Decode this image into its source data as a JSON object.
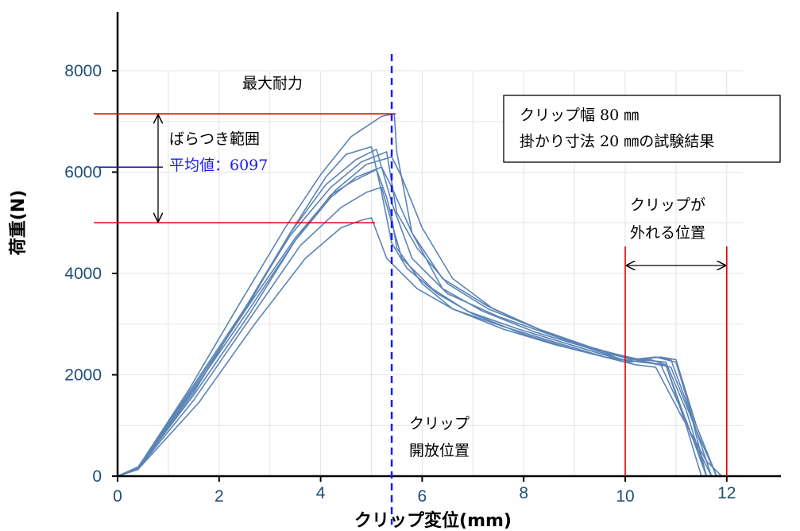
{
  "chart_data": {
    "type": "line",
    "xlabel": "クリップ変位(mm)",
    "ylabel": "荷重(N)",
    "xlim": [
      0,
      12.8
    ],
    "ylim": [
      0,
      8000
    ],
    "x_ticks": [
      0,
      2,
      4,
      6,
      8,
      10,
      12
    ],
    "y_ticks": [
      0,
      2000,
      4000,
      6000,
      8000
    ],
    "x_tick_labels": [
      "0",
      "2",
      "4",
      "6",
      "8",
      "10",
      "12"
    ],
    "y_tick_labels": [
      "0",
      "2000",
      "4000",
      "6000",
      "8000"
    ],
    "grid": true,
    "series_color": "#5b84b6",
    "series": [
      {
        "x": [
          0,
          0.4,
          1.5,
          2.6,
          3.5,
          4.2,
          4.6,
          5.1,
          5.3,
          5.4,
          5.5,
          6.0,
          6.6,
          7.6,
          8.6,
          9.6,
          10.2,
          10.6,
          11.1,
          11.6,
          11.9
        ],
        "y": [
          0,
          180,
          1700,
          3300,
          4650,
          5550,
          5800,
          6050,
          5500,
          5100,
          4500,
          3800,
          3300,
          2950,
          2650,
          2350,
          2200,
          2150,
          1200,
          300,
          0
        ]
      },
      {
        "x": [
          0,
          0.4,
          1.4,
          2.5,
          3.4,
          4.1,
          4.5,
          5.0,
          5.2,
          5.4,
          5.7,
          6.3,
          7.0,
          8.0,
          9.0,
          10.0,
          10.5,
          10.8,
          11.2,
          11.5
        ],
        "y": [
          0,
          150,
          1600,
          3250,
          4800,
          5900,
          6350,
          6500,
          5600,
          4600,
          4100,
          3600,
          3200,
          2800,
          2500,
          2250,
          2300,
          2200,
          1000,
          0
        ]
      },
      {
        "x": [
          0,
          0.4,
          1.4,
          2.4,
          3.3,
          4.0,
          4.6,
          5.2,
          5.45,
          5.5,
          5.8,
          6.4,
          7.2,
          8.2,
          9.2,
          10.1,
          10.6,
          10.9,
          11.3,
          11.6
        ],
        "y": [
          0,
          170,
          1700,
          3400,
          4900,
          5950,
          6700,
          7100,
          7150,
          6400,
          4800,
          3700,
          3250,
          2850,
          2550,
          2250,
          2350,
          2300,
          1200,
          0
        ]
      },
      {
        "x": [
          0,
          0.4,
          1.5,
          2.6,
          3.6,
          4.4,
          4.9,
          5.2,
          5.6,
          6.2,
          6.9,
          7.9,
          8.9,
          9.9,
          10.4,
          10.9,
          11.4,
          11.8
        ],
        "y": [
          0,
          140,
          1500,
          3100,
          4550,
          5300,
          5600,
          5700,
          4300,
          3700,
          3250,
          2900,
          2600,
          2300,
          2250,
          2150,
          900,
          0
        ]
      },
      {
        "x": [
          0,
          0.4,
          1.6,
          2.7,
          3.7,
          4.4,
          4.8,
          5.0,
          5.3,
          5.9,
          6.6,
          7.6,
          8.6,
          9.6,
          10.3,
          10.8,
          11.3,
          11.7
        ],
        "y": [
          0,
          130,
          1450,
          3000,
          4300,
          4900,
          5050,
          5100,
          4300,
          3700,
          3300,
          2900,
          2600,
          2350,
          2250,
          2200,
          800,
          0
        ]
      },
      {
        "x": [
          0,
          0.4,
          1.4,
          2.5,
          3.4,
          4.2,
          4.8,
          5.3,
          5.5,
          5.9,
          6.5,
          7.3,
          8.3,
          9.3,
          10.2,
          10.7,
          11.0,
          11.4,
          11.8
        ],
        "y": [
          0,
          160,
          1650,
          3300,
          4750,
          5700,
          6200,
          6400,
          5200,
          4500,
          3800,
          3300,
          2900,
          2550,
          2300,
          2350,
          2300,
          1000,
          0
        ]
      },
      {
        "x": [
          0,
          0.4,
          1.4,
          2.5,
          3.5,
          4.3,
          4.9,
          5.4,
          5.6,
          6.0,
          6.6,
          7.4,
          8.4,
          9.4,
          10.3,
          10.8,
          11.2,
          11.6
        ],
        "y": [
          0,
          150,
          1600,
          3250,
          4700,
          5650,
          6150,
          6300,
          5900,
          4900,
          3900,
          3300,
          2850,
          2500,
          2300,
          2250,
          1300,
          0
        ]
      },
      {
        "x": [
          0,
          0.4,
          1.5,
          2.5,
          3.4,
          4.1,
          4.7,
          5.1,
          5.4,
          5.8,
          6.5,
          7.5,
          8.5,
          9.5,
          10.2,
          10.7,
          11.2,
          11.6
        ],
        "y": [
          0,
          160,
          1650,
          3300,
          4800,
          5750,
          6250,
          6450,
          5400,
          4300,
          3600,
          3150,
          2800,
          2450,
          2300,
          2200,
          1100,
          0
        ]
      },
      {
        "x": [
          0,
          0.4,
          1.5,
          2.6,
          3.5,
          4.2,
          4.7,
          5.2,
          5.4,
          5.8,
          6.4,
          7.3,
          8.3,
          9.3,
          10.1,
          10.6,
          11.0,
          11.4,
          11.7
        ],
        "y": [
          0,
          150,
          1600,
          3200,
          4650,
          5500,
          5900,
          6100,
          5700,
          4800,
          3900,
          3350,
          2900,
          2550,
          2300,
          2350,
          2250,
          900,
          0
        ]
      }
    ],
    "annotations": {
      "max_label": "最大耐力",
      "range_label": "ばらつき範囲",
      "average_label": "平均値：6097",
      "open_label_line1": "クリップ",
      "open_label_line2": "開放位置",
      "detach_label_line1": "クリップが",
      "detach_label_line2": "外れる位置",
      "box_line1": "クリップ幅 80 ㎜",
      "box_line2": "掛かり寸法 20 ㎜の試験結果",
      "max_value": 7150,
      "min_value": 5000,
      "average_value": 6097,
      "open_x": 5.4,
      "detach_x_start": 10.0,
      "detach_x_end": 12.0
    }
  }
}
